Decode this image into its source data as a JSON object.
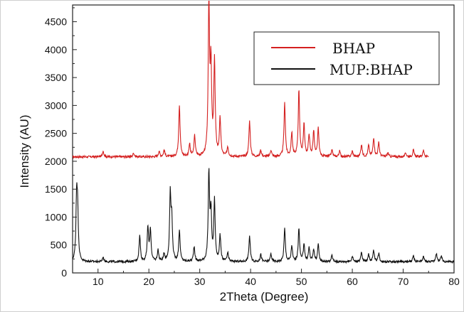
{
  "chart_data": {
    "type": "line",
    "xlabel": "2Theta (Degree)",
    "ylabel": "Intensity (AU)",
    "xlim": [
      5,
      80
    ],
    "ylim": [
      0,
      4800
    ],
    "xticks": [
      10,
      20,
      30,
      40,
      50,
      60,
      70,
      80
    ],
    "yticks": [
      0,
      500,
      1000,
      1500,
      2000,
      2500,
      3000,
      3500,
      4000,
      4500
    ],
    "grid": false,
    "legend_position": "top-right",
    "series": [
      {
        "name": "BHAP",
        "color": "#d42020",
        "x_range": [
          5,
          75
        ],
        "baseline": 2080,
        "peaks": [
          {
            "x": 11.0,
            "y": 2190
          },
          {
            "x": 17.0,
            "y": 2150
          },
          {
            "x": 22.0,
            "y": 2180
          },
          {
            "x": 23.0,
            "y": 2200
          },
          {
            "x": 26.0,
            "y": 3010
          },
          {
            "x": 28.0,
            "y": 2300
          },
          {
            "x": 29.0,
            "y": 2450
          },
          {
            "x": 31.8,
            "y": 4760
          },
          {
            "x": 32.2,
            "y": 3600
          },
          {
            "x": 32.9,
            "y": 3780
          },
          {
            "x": 34.0,
            "y": 2750
          },
          {
            "x": 35.5,
            "y": 2250
          },
          {
            "x": 39.8,
            "y": 2720
          },
          {
            "x": 42.0,
            "y": 2200
          },
          {
            "x": 44.0,
            "y": 2200
          },
          {
            "x": 46.7,
            "y": 3040
          },
          {
            "x": 48.1,
            "y": 2500
          },
          {
            "x": 49.5,
            "y": 3270
          },
          {
            "x": 50.5,
            "y": 2650
          },
          {
            "x": 51.5,
            "y": 2470
          },
          {
            "x": 52.4,
            "y": 2530
          },
          {
            "x": 53.3,
            "y": 2580
          },
          {
            "x": 56.0,
            "y": 2200
          },
          {
            "x": 57.5,
            "y": 2180
          },
          {
            "x": 60.0,
            "y": 2180
          },
          {
            "x": 61.8,
            "y": 2300
          },
          {
            "x": 63.2,
            "y": 2280
          },
          {
            "x": 64.2,
            "y": 2420
          },
          {
            "x": 65.2,
            "y": 2330
          },
          {
            "x": 67.0,
            "y": 2150
          },
          {
            "x": 70.5,
            "y": 2150
          },
          {
            "x": 72.0,
            "y": 2200
          },
          {
            "x": 74.0,
            "y": 2200
          }
        ]
      },
      {
        "name": "MUP:BHAP",
        "color": "#111111",
        "x_range": [
          5,
          80
        ],
        "baseline": 200,
        "peaks": [
          {
            "x": 5.8,
            "y": 1320
          },
          {
            "x": 6.0,
            "y": 960
          },
          {
            "x": 11.0,
            "y": 280
          },
          {
            "x": 18.2,
            "y": 660
          },
          {
            "x": 19.8,
            "y": 810
          },
          {
            "x": 20.3,
            "y": 760
          },
          {
            "x": 21.8,
            "y": 400
          },
          {
            "x": 23.0,
            "y": 330
          },
          {
            "x": 24.2,
            "y": 1370
          },
          {
            "x": 24.5,
            "y": 900
          },
          {
            "x": 26.0,
            "y": 760
          },
          {
            "x": 28.9,
            "y": 470
          },
          {
            "x": 31.8,
            "y": 1740
          },
          {
            "x": 32.2,
            "y": 1020
          },
          {
            "x": 32.9,
            "y": 1280
          },
          {
            "x": 34.0,
            "y": 660
          },
          {
            "x": 35.5,
            "y": 350
          },
          {
            "x": 39.8,
            "y": 660
          },
          {
            "x": 42.0,
            "y": 330
          },
          {
            "x": 44.0,
            "y": 340
          },
          {
            "x": 46.7,
            "y": 790
          },
          {
            "x": 48.1,
            "y": 480
          },
          {
            "x": 49.5,
            "y": 800
          },
          {
            "x": 50.5,
            "y": 520
          },
          {
            "x": 51.5,
            "y": 450
          },
          {
            "x": 52.4,
            "y": 420
          },
          {
            "x": 53.3,
            "y": 500
          },
          {
            "x": 56.0,
            "y": 310
          },
          {
            "x": 60.0,
            "y": 300
          },
          {
            "x": 61.8,
            "y": 360
          },
          {
            "x": 63.2,
            "y": 340
          },
          {
            "x": 64.2,
            "y": 400
          },
          {
            "x": 65.2,
            "y": 350
          },
          {
            "x": 72.0,
            "y": 300
          },
          {
            "x": 74.0,
            "y": 290
          },
          {
            "x": 76.5,
            "y": 350
          },
          {
            "x": 77.5,
            "y": 300
          }
        ]
      }
    ]
  }
}
